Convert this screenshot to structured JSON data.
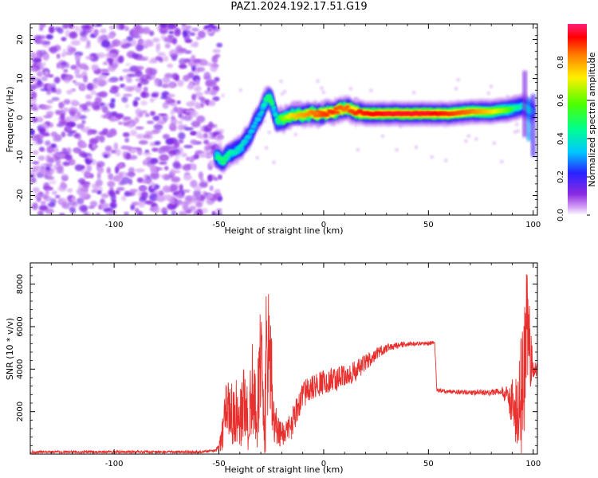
{
  "title": "PAZ1.2024.192.17.51.G19",
  "chart_data": [
    {
      "type": "heatmap",
      "xlabel": "Height of straight line (km)",
      "ylabel": "Frequency (Hz)",
      "xlim": [
        -140,
        102
      ],
      "ylim": [
        -25,
        24
      ],
      "xticks": [
        -100,
        -50,
        0,
        50,
        100
      ],
      "yticks": [
        -20,
        -10,
        0,
        10,
        20
      ],
      "colorbar": {
        "label": "Normalized spectral amplitude",
        "range": [
          0,
          1
        ],
        "ticks": [
          0.0,
          0.2,
          0.4,
          0.6,
          0.8
        ],
        "colormap": [
          "#ffffff",
          "#cf9cf2",
          "#8a2be2",
          "#1e22ff",
          "#00d4ff",
          "#00ff80",
          "#5cff00",
          "#ffe600",
          "#ff7a00",
          "#ff0000",
          "#ff1f7a"
        ]
      },
      "noise_region": {
        "x": [
          -140,
          -51
        ],
        "freq": [
          -25,
          24
        ]
      },
      "ridge": {
        "x": [
          -51,
          -48,
          -45,
          -42,
          -39,
          -36,
          -33,
          -30,
          -28,
          -26,
          -25,
          -24,
          -23,
          -22,
          -21,
          -20,
          -18,
          -15,
          -10,
          -5,
          0,
          5,
          10,
          15,
          20,
          30,
          40,
          50,
          60,
          70,
          80,
          88,
          92,
          95,
          98,
          100
        ],
        "freq": [
          -10,
          -11,
          -9.5,
          -8.5,
          -7.5,
          -5,
          -2,
          1,
          4,
          5,
          4,
          2.5,
          0.5,
          -1,
          -0.5,
          -0.5,
          -0.3,
          0.5,
          0.8,
          1,
          1,
          1.5,
          2.5,
          1.5,
          1,
          1,
          1,
          1,
          1,
          1.5,
          1.5,
          2,
          2.5,
          3,
          2,
          1.5
        ],
        "amplitude": [
          0.45,
          0.5,
          0.45,
          0.4,
          0.4,
          0.35,
          0.35,
          0.35,
          0.45,
          0.5,
          0.55,
          0.4,
          0.4,
          0.45,
          0.55,
          0.6,
          0.65,
          0.75,
          0.8,
          0.85,
          0.9,
          0.9,
          0.85,
          0.9,
          0.92,
          0.95,
          0.95,
          0.95,
          0.9,
          0.85,
          0.75,
          0.6,
          0.45,
          0.4,
          0.4,
          0.4
        ]
      }
    },
    {
      "type": "line",
      "xlabel": "Height of straight line (km)",
      "ylabel": "SNR (10 * v/v)",
      "xlim": [
        -140,
        102
      ],
      "ylim": [
        0,
        9000
      ],
      "xticks": [
        -100,
        -50,
        0,
        50,
        100
      ],
      "yticks": [
        2000,
        4000,
        6000,
        8000
      ],
      "color": "#e8312e",
      "series": [
        {
          "x": [
            -140,
            -100,
            -60,
            -52,
            -50,
            -48,
            -46,
            -44,
            -42,
            -40,
            -38,
            -36,
            -34,
            -32,
            -30,
            -28,
            -26,
            -25,
            -24,
            -22,
            -20,
            -18,
            -15,
            -10,
            -5,
            0,
            5,
            10,
            15,
            20,
            25,
            30,
            35,
            40,
            45,
            50,
            53,
            54,
            60,
            70,
            80,
            85,
            88,
            90,
            92,
            94,
            96,
            97,
            98,
            100,
            102
          ],
          "y": [
            100,
            100,
            100,
            150,
            300,
            1200,
            2400,
            1800,
            1600,
            1500,
            2600,
            1400,
            3200,
            2000,
            4200,
            2500,
            5500,
            3800,
            1800,
            1000,
            900,
            1000,
            1500,
            2800,
            3200,
            3400,
            3500,
            3700,
            3900,
            4300,
            4700,
            5000,
            5100,
            5200,
            5200,
            5200,
            5300,
            3000,
            2950,
            2900,
            2900,
            3000,
            2600,
            2500,
            2000,
            3000,
            4000,
            6000,
            4800,
            4000,
            4000
          ],
          "spread": [
            0,
            0,
            0,
            50,
            200,
            1000,
            1200,
            1500,
            1400,
            1400,
            1600,
            1500,
            2200,
            2000,
            2500,
            2400,
            3000,
            2500,
            1200,
            800,
            600,
            500,
            800,
            700,
            600,
            600,
            600,
            500,
            500,
            400,
            300,
            200,
            150,
            120,
            100,
            100,
            80,
            100,
            100,
            120,
            150,
            200,
            600,
            1200,
            1800,
            2500,
            3500,
            3000,
            2000,
            400,
            300
          ]
        }
      ]
    }
  ]
}
